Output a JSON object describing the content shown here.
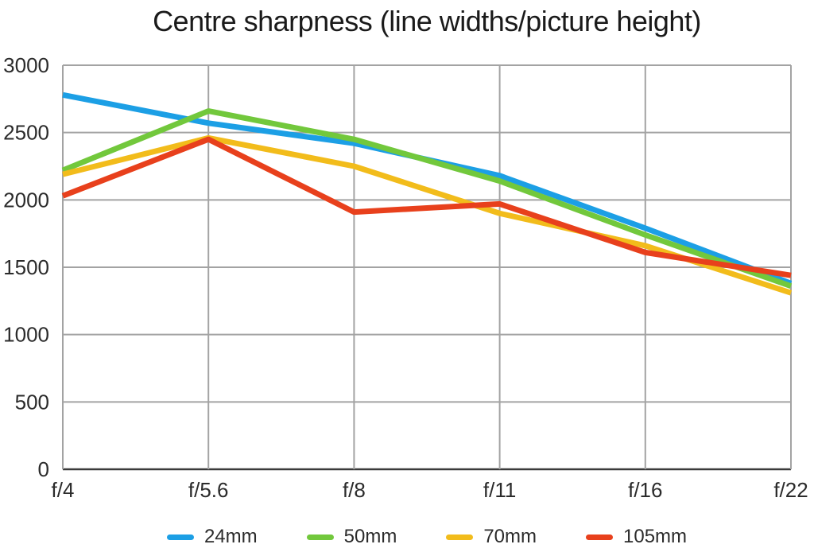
{
  "page": {
    "background": "#ffffff"
  },
  "chart_data": {
    "type": "line",
    "title": "Centre sharpness (line widths/picture height)",
    "xlabel": "",
    "ylabel": "",
    "categories": [
      "f/4",
      "f/5.6",
      "f/8",
      "f/11",
      "f/16",
      "f/22"
    ],
    "series": [
      {
        "name": "24mm",
        "color": "#1c9fe5",
        "values": [
          2780,
          2570,
          2420,
          2180,
          1790,
          1380
        ]
      },
      {
        "name": "50mm",
        "color": "#72c83c",
        "values": [
          2220,
          2660,
          2450,
          2140,
          1740,
          1360
        ]
      },
      {
        "name": "70mm",
        "color": "#f2bc1b",
        "values": [
          2190,
          2460,
          2250,
          1900,
          1660,
          1310
        ]
      },
      {
        "name": "105mm",
        "color": "#e8401c",
        "values": [
          2030,
          2450,
          1910,
          1970,
          1610,
          1440
        ]
      }
    ],
    "ylim": [
      0,
      3000
    ],
    "yticks": [
      0,
      500,
      1000,
      1500,
      2000,
      2500,
      3000
    ],
    "grid": true,
    "legend_position": "bottom",
    "grid_color": "#a3a3a3",
    "baseline_color": "#3a3a3a",
    "label_color": "#2b2b2b"
  }
}
